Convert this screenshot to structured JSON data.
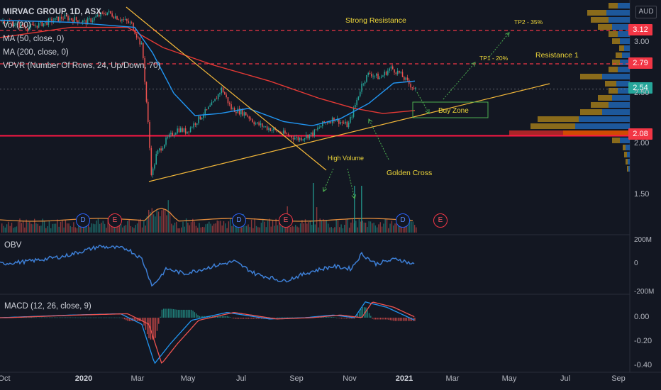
{
  "legend": {
    "symbol": "MIRVAC GROUP, 1D, ASX",
    "vol": "Vol (20)",
    "ma50": "MA (50, close, 0)",
    "ma200": "MA (200, close, 0)",
    "vpvr": "VPVR (Number Of Rows, 24, Up/Down, 70)"
  },
  "currency": "AUD",
  "annotations": {
    "strong_resistance": "Strong Resistance",
    "tp2": "TP2 - 35%",
    "tp1": "TP1 - 20%",
    "resistance1": "Resistance 1",
    "buy_zone": "Buy Zone",
    "high_volume": "High Volume",
    "golden_cross": "Golden Cross"
  },
  "price_tags": {
    "tp2": "3.12",
    "res1": "2.79",
    "last": "2.54",
    "support": "2.08"
  },
  "obv_label": "OBV",
  "macd_label": "MACD (12, 26, close, 9)",
  "colors": {
    "background": "#131722",
    "up": "#26a69a",
    "down": "#ef5350",
    "ma50": "#2196f3",
    "ma200": "#e53935",
    "trend": "#f5b93a",
    "resistance": "#f23645",
    "obv": "#3d7fd6",
    "annotation": "#f0d83a",
    "arrow": "#4caf50"
  },
  "chart_data": {
    "type": "candlestick",
    "price_axis": {
      "ticks": [
        {
          "value": 3.0,
          "label": "3.00"
        },
        {
          "value": 2.5,
          "label": "2.50"
        },
        {
          "value": 2.0,
          "label": "2.00"
        },
        {
          "value": 1.5,
          "label": "1.50"
        }
      ]
    },
    "time_axis": [
      {
        "label": "Oct",
        "bold": false
      },
      {
        "label": "2020",
        "bold": true
      },
      {
        "label": "Mar",
        "bold": false
      },
      {
        "label": "May",
        "bold": false
      },
      {
        "label": "Jul",
        "bold": false
      },
      {
        "label": "Sep",
        "bold": false
      },
      {
        "label": "Nov",
        "bold": false
      },
      {
        "label": "2021",
        "bold": true
      },
      {
        "label": "Mar",
        "bold": false
      },
      {
        "label": "May",
        "bold": false
      },
      {
        "label": "Jul",
        "bold": false
      },
      {
        "label": "Sep",
        "bold": false
      }
    ],
    "price_path": [
      [
        0,
        3.22
      ],
      [
        40,
        3.15
      ],
      [
        90,
        3.25
      ],
      [
        120,
        3.2
      ],
      [
        150,
        3.3
      ],
      [
        185,
        3.18
      ],
      [
        200,
        2.95
      ],
      [
        208,
        2.2
      ],
      [
        213,
        1.68
      ],
      [
        220,
        1.9
      ],
      [
        235,
        2.05
      ],
      [
        250,
        2.15
      ],
      [
        262,
        2.12
      ],
      [
        280,
        2.25
      ],
      [
        300,
        2.4
      ],
      [
        312,
        2.55
      ],
      [
        325,
        2.35
      ],
      [
        345,
        2.3
      ],
      [
        360,
        2.2
      ],
      [
        380,
        2.15
      ],
      [
        400,
        2.1
      ],
      [
        420,
        2.05
      ],
      [
        440,
        2.1
      ],
      [
        455,
        2.2
      ],
      [
        470,
        2.25
      ],
      [
        490,
        2.18
      ],
      [
        500,
        2.38
      ],
      [
        510,
        2.6
      ],
      [
        520,
        2.7
      ],
      [
        535,
        2.65
      ],
      [
        550,
        2.75
      ],
      [
        562,
        2.7
      ],
      [
        575,
        2.6
      ],
      [
        585,
        2.54
      ]
    ],
    "events": [
      {
        "label": "D",
        "kind": "dividend"
      },
      {
        "label": "E",
        "kind": "earnings"
      },
      {
        "label": "D",
        "kind": "dividend"
      },
      {
        "label": "E",
        "kind": "earnings"
      },
      {
        "label": "D",
        "kind": "dividend"
      },
      {
        "label": "E",
        "kind": "earnings"
      }
    ],
    "levels": {
      "strong_resistance": 3.12,
      "resistance1": 2.79,
      "last": 2.54,
      "support": 2.08
    },
    "obv_axis": [
      "200M",
      "0",
      "-200M"
    ],
    "macd_axis": [
      "0.00",
      "-0.20",
      "-0.40"
    ]
  }
}
